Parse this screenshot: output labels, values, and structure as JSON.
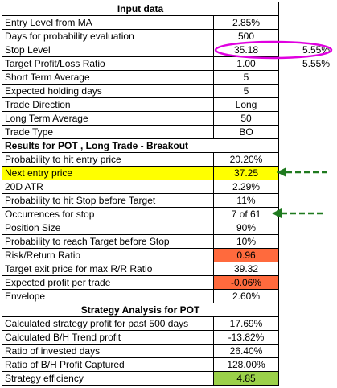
{
  "sections": {
    "input": "Input data",
    "results": "Results for POT , Long Trade - Breakout",
    "strategy": "Strategy Analysis for POT"
  },
  "rows": {
    "entry_level": {
      "label": "Entry Level from MA",
      "value": "2.85%"
    },
    "days_prob": {
      "label": "Days for probability evaluation",
      "value": "500"
    },
    "stop_level": {
      "label": "Stop Level",
      "value": "35.18",
      "extra": "5.55%"
    },
    "target_ratio": {
      "label": "Target Profit/Loss Ratio",
      "value": "1.00",
      "extra": "5.55%"
    },
    "short_avg": {
      "label": "Short Term Average",
      "value": "5"
    },
    "holding_days": {
      "label": "Expected holding days",
      "value": "5"
    },
    "trade_direction": {
      "label": "Trade Direction",
      "value": "Long"
    },
    "long_avg": {
      "label": "Long Term Average",
      "value": "50"
    },
    "trade_type": {
      "label": "Trade Type",
      "value": "BO"
    },
    "prob_hit_entry": {
      "label": "Probability to hit entry price",
      "value": "20.20%"
    },
    "next_entry": {
      "label": "Next entry price",
      "value": "37.25"
    },
    "atr": {
      "label": "20D ATR",
      "value": "2.29%"
    },
    "prob_hit_stop": {
      "label": "Probability to hit Stop before Target",
      "value": "11%"
    },
    "occurrences": {
      "label": "Occurrences for stop",
      "value": "7 of 61"
    },
    "position_size": {
      "label": "Position Size",
      "value": "90%"
    },
    "prob_reach_target": {
      "label": "Probability to reach Target before Stop",
      "value": "10%"
    },
    "risk_return": {
      "label": "Risk/Return Ratio",
      "value": "0.96"
    },
    "target_exit": {
      "label": "Target exit price for max R/R Ratio",
      "value": "39.32"
    },
    "expected_profit": {
      "label": "Expected profit per trade",
      "value": "-0.06%"
    },
    "envelope": {
      "label": "Envelope",
      "value": "2.60%"
    },
    "calc_strategy": {
      "label": "Calculated strategy profit for past 500 days",
      "value": "17.69%"
    },
    "calc_bh": {
      "label": "Calculated B/H Trend profit",
      "value": "-13.82%"
    },
    "invested_days": {
      "label": "Ratio of invested days",
      "value": "26.40%"
    },
    "bh_captured": {
      "label": "Ratio of B/H Profit Captured",
      "value": "128.00%"
    },
    "efficiency": {
      "label": "Strategy efficiency",
      "value": "4.85"
    }
  },
  "colors": {
    "highlight_yellow": "#ffff00",
    "risk_red": "#ff6a3d",
    "efficiency_green": "#9bd14a",
    "annotation_ellipse": "#e000e0",
    "annotation_arrow": "#1f7a1f"
  }
}
